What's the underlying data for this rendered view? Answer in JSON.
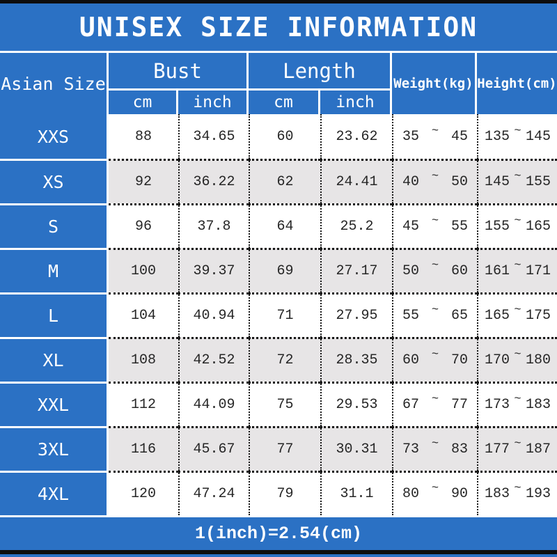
{
  "title": "UNISEX SIZE INFORMATION",
  "header": {
    "size_column": "Asian Size",
    "bust": "Bust",
    "length": "Length",
    "cm": "cm",
    "inch": "inch",
    "weight": "Weight(kg)",
    "height": "Height(cm)",
    "tilde": "~"
  },
  "rows": [
    {
      "size": "XXS",
      "bust_cm": "88",
      "bust_inch": "34.65",
      "length_cm": "60",
      "length_inch": "23.62",
      "weight_min": "35",
      "weight_max": "45",
      "height_min": "135",
      "height_max": "145"
    },
    {
      "size": "XS",
      "bust_cm": "92",
      "bust_inch": "36.22",
      "length_cm": "62",
      "length_inch": "24.41",
      "weight_min": "40",
      "weight_max": "50",
      "height_min": "145",
      "height_max": "155"
    },
    {
      "size": "S",
      "bust_cm": "96",
      "bust_inch": "37.8",
      "length_cm": "64",
      "length_inch": "25.2",
      "weight_min": "45",
      "weight_max": "55",
      "height_min": "155",
      "height_max": "165"
    },
    {
      "size": "M",
      "bust_cm": "100",
      "bust_inch": "39.37",
      "length_cm": "69",
      "length_inch": "27.17",
      "weight_min": "50",
      "weight_max": "60",
      "height_min": "161",
      "height_max": "171"
    },
    {
      "size": "L",
      "bust_cm": "104",
      "bust_inch": "40.94",
      "length_cm": "71",
      "length_inch": "27.95",
      "weight_min": "55",
      "weight_max": "65",
      "height_min": "165",
      "height_max": "175"
    },
    {
      "size": "XL",
      "bust_cm": "108",
      "bust_inch": "42.52",
      "length_cm": "72",
      "length_inch": "28.35",
      "weight_min": "60",
      "weight_max": "70",
      "height_min": "170",
      "height_max": "180"
    },
    {
      "size": "XXL",
      "bust_cm": "112",
      "bust_inch": "44.09",
      "length_cm": "75",
      "length_inch": "29.53",
      "weight_min": "67",
      "weight_max": "77",
      "height_min": "173",
      "height_max": "183"
    },
    {
      "size": "3XL",
      "bust_cm": "116",
      "bust_inch": "45.67",
      "length_cm": "77",
      "length_inch": "30.31",
      "weight_min": "73",
      "weight_max": "83",
      "height_min": "177",
      "height_max": "187"
    },
    {
      "size": "4XL",
      "bust_cm": "120",
      "bust_inch": "47.24",
      "length_cm": "79",
      "length_inch": "31.1",
      "weight_min": "80",
      "weight_max": "90",
      "height_min": "183",
      "height_max": "193"
    }
  ],
  "footer": {
    "note": "1(inch)=2.54(cm)"
  },
  "colors": {
    "blue": "#2b71c4",
    "stripe": "#e7e5e6",
    "ink": "#262626"
  },
  "chart_data": {
    "type": "table",
    "title": "UNISEX SIZE INFORMATION",
    "columns": [
      "Asian Size",
      "Bust cm",
      "Bust inch",
      "Length cm",
      "Length inch",
      "Weight(kg)",
      "Height(cm)"
    ],
    "rows": [
      [
        "XXS",
        88,
        34.65,
        60,
        23.62,
        "35~45",
        "135~145"
      ],
      [
        "XS",
        92,
        36.22,
        62,
        24.41,
        "40~50",
        "145~155"
      ],
      [
        "S",
        96,
        37.8,
        64,
        25.2,
        "45~55",
        "155~165"
      ],
      [
        "M",
        100,
        39.37,
        69,
        27.17,
        "50~60",
        "161~171"
      ],
      [
        "L",
        104,
        40.94,
        71,
        27.95,
        "55~65",
        "165~175"
      ],
      [
        "XL",
        108,
        42.52,
        72,
        28.35,
        "60~70",
        "170~180"
      ],
      [
        "XXL",
        112,
        44.09,
        75,
        29.53,
        "67~77",
        "173~183"
      ],
      [
        "3XL",
        116,
        45.67,
        77,
        30.31,
        "73~83",
        "177~187"
      ],
      [
        "4XL",
        120,
        47.24,
        79,
        31.1,
        "80~90",
        "183~193"
      ]
    ],
    "note": "1(inch)=2.54(cm)"
  }
}
